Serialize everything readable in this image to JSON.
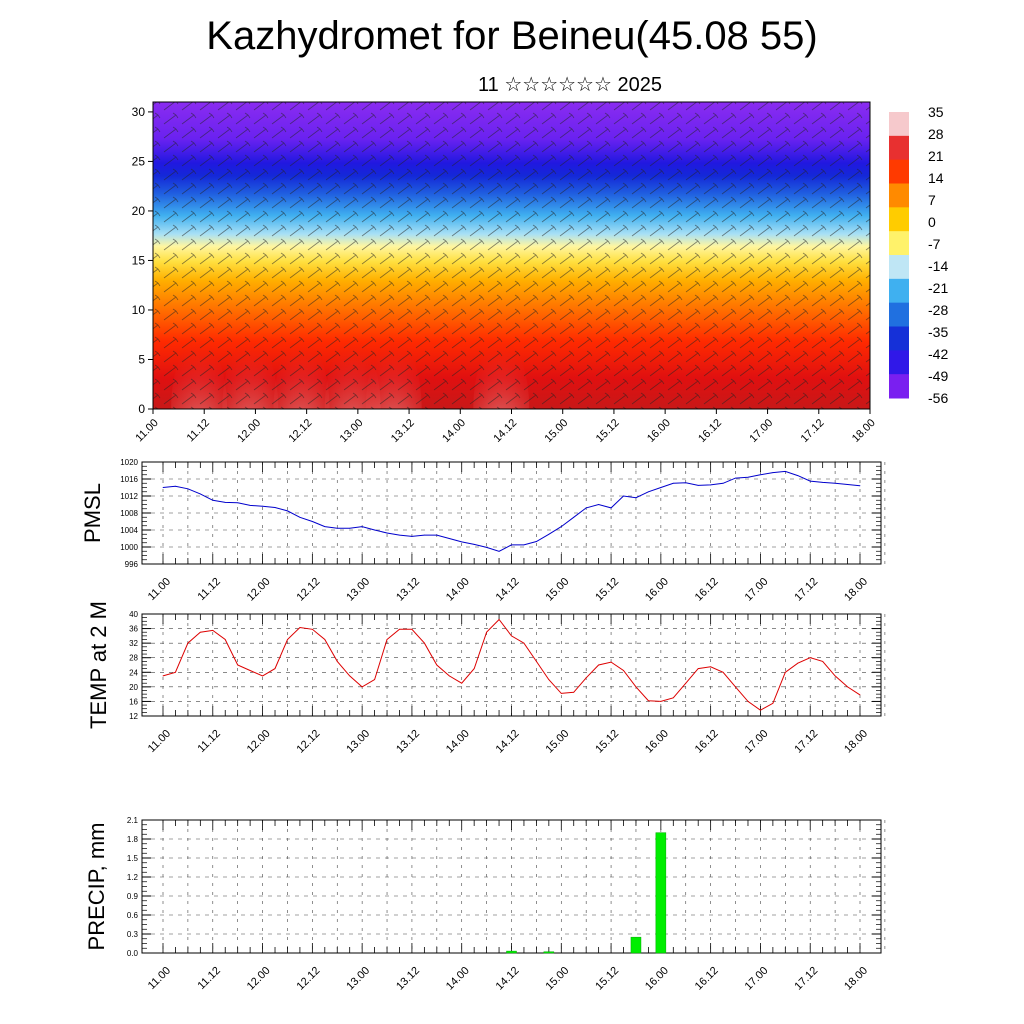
{
  "title": "Kazhydromet for Beineu(45.08 55)",
  "subtitle": "11 ☆☆☆☆☆☆ 2025",
  "x_tick_labels": [
    "11.00",
    "11.12",
    "12.00",
    "12.12",
    "13.00",
    "13.12",
    "14.00",
    "14.12",
    "15.00",
    "15.12",
    "16.00",
    "16.12",
    "17.00",
    "17.12",
    "18.00"
  ],
  "chart_data": [
    {
      "type": "heatmap",
      "title": "",
      "xlabel": "",
      "ylabel": "",
      "x_range": [
        0,
        14
      ],
      "ylim": [
        0,
        31
      ],
      "y_ticks": [
        0,
        5,
        10,
        15,
        20,
        25,
        30
      ],
      "colorbar": {
        "labels": [
          "35",
          "28",
          "21",
          "14",
          "7",
          "0",
          "-7",
          "-14",
          "-21",
          "-28",
          "-35",
          "-42",
          "-49",
          "-56"
        ],
        "colors": [
          "#f6c9cc",
          "#e83030",
          "#ff3a00",
          "#ff8a00",
          "#ffcc00",
          "#fff26a",
          "#bfe6f5",
          "#3fb0f0",
          "#2070e0",
          "#1530d8",
          "#3018e8",
          "#7a1ff0"
        ]
      },
      "overlay": "wind barbs",
      "description_levels": [
        {
          "height": 0,
          "temp": 30
        },
        {
          "height": 5,
          "temp": 21
        },
        {
          "height": 10,
          "temp": 7
        },
        {
          "height": 15,
          "temp": -7
        },
        {
          "height": 20,
          "temp": -28
        },
        {
          "height": 25,
          "temp": -56
        },
        {
          "height": 31,
          "temp": -45
        }
      ]
    },
    {
      "type": "line",
      "ylabel": "PMSL",
      "ylim": [
        996,
        1020
      ],
      "y_ticks": [
        996,
        1000,
        1004,
        1008,
        1012,
        1016,
        1020
      ],
      "color": "#0000cc",
      "x": [
        0,
        0.25,
        0.5,
        0.75,
        1,
        1.25,
        1.5,
        1.75,
        2,
        2.25,
        2.5,
        2.75,
        3,
        3.25,
        3.5,
        3.75,
        4,
        4.25,
        4.5,
        4.75,
        5,
        5.25,
        5.5,
        5.75,
        6,
        6.25,
        6.5,
        6.75,
        7,
        7.25,
        7.5,
        7.75,
        8,
        8.25,
        8.5,
        8.75,
        9,
        9.25,
        9.5,
        9.75,
        10,
        10.25,
        10.5,
        10.75,
        11,
        11.25,
        11.5,
        11.75,
        12,
        12.25,
        12.5,
        12.75,
        13,
        13.25,
        13.5,
        13.75,
        14
      ],
      "values": [
        1014.0,
        1014.3,
        1013.7,
        1012.5,
        1011.0,
        1010.5,
        1010.4,
        1009.8,
        1009.6,
        1009.3,
        1008.5,
        1007.0,
        1006.0,
        1004.8,
        1004.4,
        1004.4,
        1004.8,
        1004.0,
        1003.3,
        1002.8,
        1002.5,
        1002.8,
        1002.8,
        1002.0,
        1001.2,
        1000.6,
        999.9,
        999.0,
        1000.5,
        1000.5,
        1001.3,
        1003.0,
        1004.8,
        1007.0,
        1009.2,
        1010.0,
        1009.2,
        1012.0,
        1011.6,
        1013.0,
        1014.0,
        1015.0,
        1015.1,
        1014.5,
        1014.6,
        1015.0,
        1016.2,
        1016.4,
        1017.0,
        1017.5,
        1017.8,
        1016.8,
        1015.5,
        1015.2,
        1015.0,
        1014.7,
        1014.4
      ]
    },
    {
      "type": "line",
      "ylabel": "TEMP at 2 M",
      "ylim": [
        12,
        40
      ],
      "y_ticks": [
        12,
        16,
        20,
        24,
        28,
        32,
        36,
        40
      ],
      "color": "#dd0000",
      "x": [
        0,
        0.25,
        0.5,
        0.75,
        1,
        1.25,
        1.5,
        1.75,
        2,
        2.25,
        2.5,
        2.75,
        3,
        3.25,
        3.5,
        3.75,
        4,
        4.25,
        4.5,
        4.75,
        5,
        5.25,
        5.5,
        5.75,
        6,
        6.25,
        6.5,
        6.75,
        7,
        7.25,
        7.5,
        7.75,
        8,
        8.25,
        8.5,
        8.75,
        9,
        9.25,
        9.5,
        9.75,
        10,
        10.25,
        10.5,
        10.75,
        11,
        11.25,
        11.5,
        11.75,
        12,
        12.25,
        12.5,
        12.75,
        13,
        13.25,
        13.5,
        13.75,
        14
      ],
      "values": [
        23.0,
        24.0,
        32.0,
        35.0,
        35.5,
        33.0,
        26.0,
        24.5,
        23.0,
        25.0,
        33.0,
        36.3,
        35.8,
        33.0,
        27.0,
        23.0,
        20.0,
        22.0,
        33.0,
        35.8,
        35.8,
        32.0,
        26.0,
        23.0,
        21.0,
        25.0,
        35.0,
        38.5,
        34.0,
        32.0,
        27.0,
        22.0,
        18.2,
        18.5,
        22.5,
        26.0,
        26.8,
        24.5,
        20.0,
        16.2,
        16.0,
        17.0,
        21.0,
        25.0,
        25.5,
        24.0,
        20.0,
        16.0,
        13.6,
        15.5,
        24.0,
        26.5,
        28.0,
        27.0,
        23.0,
        20.0,
        17.8
      ]
    },
    {
      "type": "bar",
      "ylabel": "PRECIP, mm",
      "ylim": [
        0,
        2.1
      ],
      "y_ticks": [
        0.0,
        0.3,
        0.6,
        0.9,
        1.2,
        1.5,
        1.8,
        2.1
      ],
      "color": "#00ee00",
      "x": [
        7.0,
        7.75,
        9.5,
        10.0
      ],
      "values": [
        0.03,
        0.02,
        0.25,
        1.9
      ]
    }
  ]
}
